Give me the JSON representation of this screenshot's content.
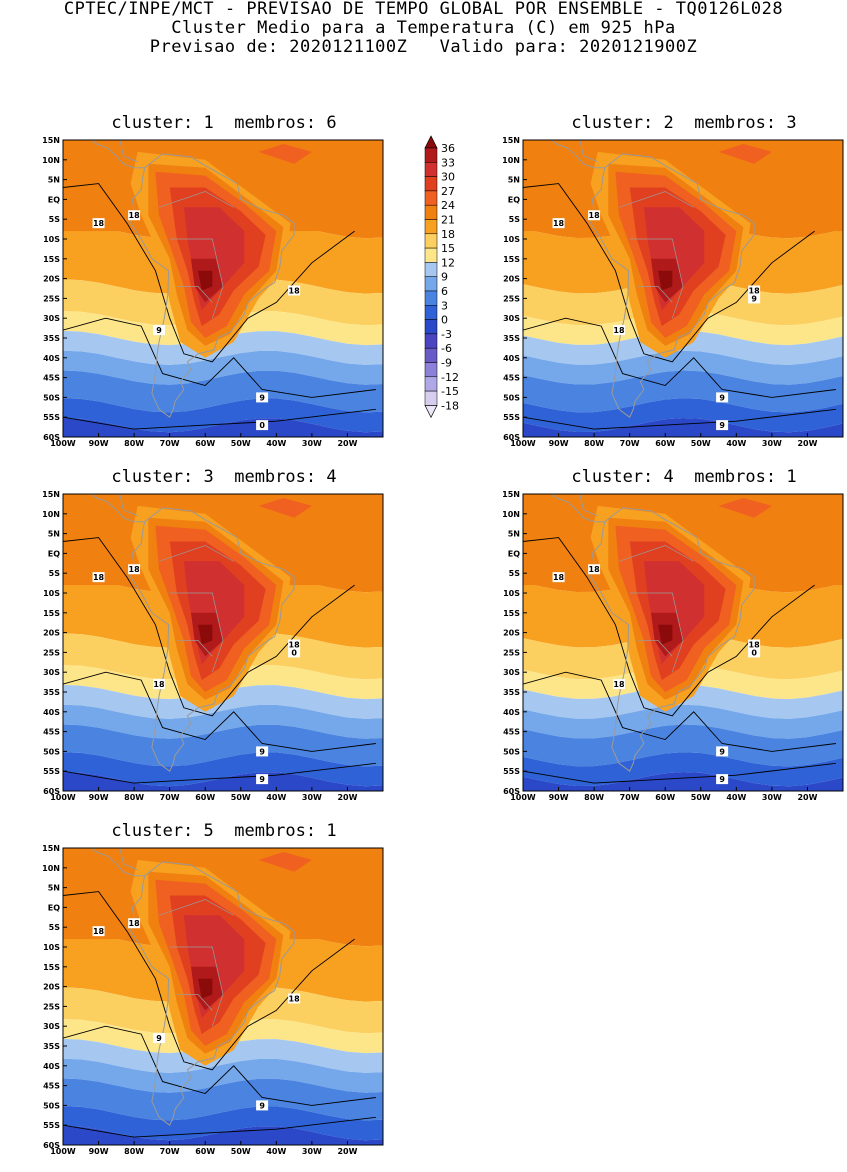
{
  "header": {
    "line1": "CPTEC/INPE/MCT - PREVISAO DE TEMPO GLOBAL POR ENSEMBLE - TQ0126L028",
    "line2": "Cluster Medio para a Temperatura (C) em 925 hPa",
    "line3": "Previsao de: 2020121100Z   Valido para: 2020121900Z"
  },
  "panels": [
    {
      "title": "cluster: 1  membros: 6",
      "contour_labels": [
        "18",
        "18",
        "18",
        "9",
        "9",
        "0"
      ]
    },
    {
      "title": "cluster: 2  membros: 3",
      "contour_labels": [
        "18",
        "18",
        "18",
        "18",
        "9",
        "9",
        "9"
      ]
    },
    {
      "title": "cluster: 3  membros: 4",
      "contour_labels": [
        "18",
        "18",
        "18",
        "18",
        "9",
        "9",
        "0"
      ]
    },
    {
      "title": "cluster: 4  membros: 1",
      "contour_labels": [
        "18",
        "18",
        "18",
        "18",
        "9",
        "9",
        "0"
      ]
    },
    {
      "title": "cluster: 5  membros: 1",
      "contour_labels": [
        "18",
        "18",
        "18",
        "9",
        "9"
      ]
    }
  ],
  "lat_ticks": [
    "15N",
    "10N",
    "5N",
    "EQ",
    "5S",
    "10S",
    "15S",
    "20S",
    "25S",
    "30S",
    "35S",
    "40S",
    "45S",
    "50S",
    "55S",
    "60S"
  ],
  "lon_ticks": [
    "100W",
    "90W",
    "80W",
    "70W",
    "60W",
    "50W",
    "40W",
    "30W",
    "20W"
  ],
  "colorbar": {
    "labels": [
      "36",
      "33",
      "30",
      "27",
      "24",
      "21",
      "18",
      "15",
      "12",
      "9",
      "6",
      "3",
      "0",
      "-3",
      "-6",
      "-9",
      "-12",
      "-15",
      "-18"
    ],
    "colors": [
      "#8b0a0a",
      "#b01a1a",
      "#d03030",
      "#e04020",
      "#f06020",
      "#f08010",
      "#f8a020",
      "#fcd060",
      "#fde68a",
      "#a6c8f0",
      "#74a8ea",
      "#4a84e0",
      "#2e62d6",
      "#2a48c8",
      "#4a44c0",
      "#6a5ac8",
      "#8c80d8",
      "#b0a8e6",
      "#d6ceee",
      "#ece6f8"
    ]
  }
}
